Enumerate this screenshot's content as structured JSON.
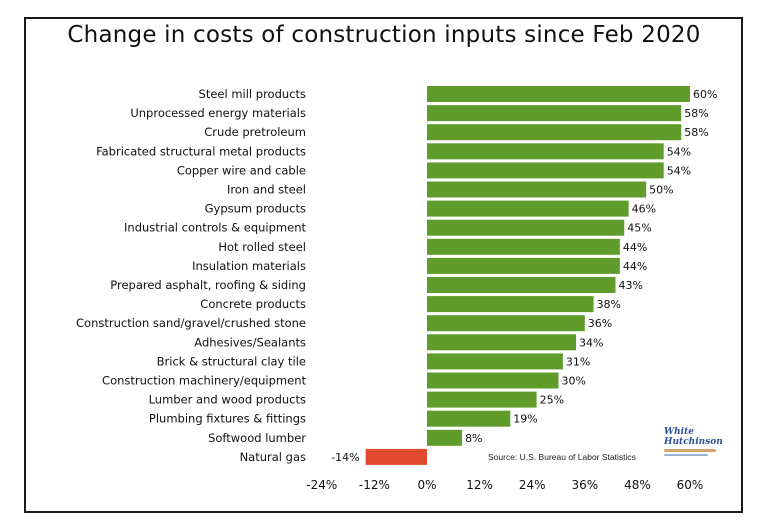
{
  "chart_data": {
    "type": "bar",
    "orientation": "horizontal",
    "title": "Change in costs of construction inputs since Feb 2020",
    "categories": [
      "Steel mill products",
      "Unprocessed energy materials",
      "Crude pretroleum",
      "Fabricated structural metal products",
      "Copper wire and cable",
      "Iron and steel",
      "Gypsum products",
      "Industrial controls & equipment",
      "Hot rolled steel",
      "Insulation materials",
      "Prepared asphalt, roofing & siding",
      "Concrete products",
      "Construction sand/gravel/crushed stone",
      "Adhesives/Sealants",
      "Brick & structural clay tile",
      "Construction machinery/equipment",
      "Lumber and wood products",
      "Plumbing fixtures & fittings",
      "Softwood lumber",
      "Natural gas"
    ],
    "values": [
      60,
      58,
      58,
      54,
      54,
      50,
      46,
      45,
      44,
      44,
      43,
      38,
      36,
      34,
      31,
      30,
      25,
      19,
      8,
      -14
    ],
    "value_labels": [
      "60%",
      "58%",
      "58%",
      "54%",
      "54%",
      "50%",
      "46%",
      "45%",
      "44%",
      "44%",
      "43%",
      "38%",
      "36%",
      "34%",
      "31%",
      "30%",
      "25%",
      "19%",
      "8%",
      "-14%"
    ],
    "xlim": [
      -24,
      60
    ],
    "xticks": [
      -24,
      -12,
      0,
      12,
      24,
      36,
      48,
      60
    ],
    "xtick_labels": [
      "-24%",
      "-12%",
      "0%",
      "12%",
      "24%",
      "36%",
      "48%",
      "60%"
    ],
    "xlabel": "",
    "ylabel": "",
    "colors": {
      "positive": "#5f9c2b",
      "negative": "#e04a2f"
    },
    "source": "Source:  U.S. Bureau of Labor Statistics",
    "logo_text": [
      "White",
      "Hutchinson"
    ]
  }
}
